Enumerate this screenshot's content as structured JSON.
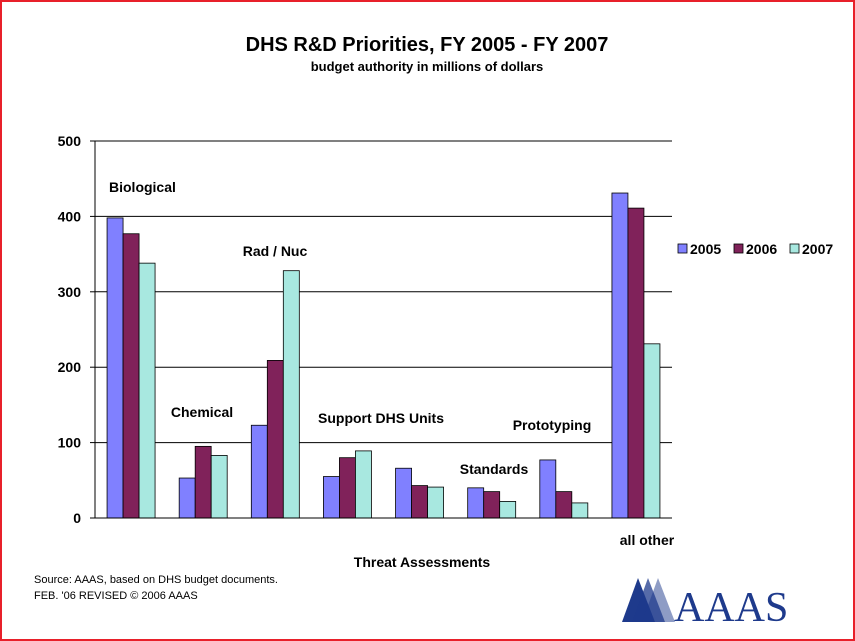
{
  "chart_data": {
    "type": "bar",
    "title": "DHS R&D Priorities, FY 2005 - FY 2007",
    "subtitle": "budget authority in millions of dollars",
    "categories": [
      "Biological",
      "Chemical",
      "Rad / Nuc",
      "Support DHS Units",
      "Threat Assessments",
      "Standards",
      "Prototyping",
      "all other"
    ],
    "series": [
      {
        "name": "2005",
        "color": "#8080ff",
        "values": [
          398,
          53,
          123,
          55,
          66,
          40,
          77,
          431
        ]
      },
      {
        "name": "2006",
        "color": "#80225a",
        "values": [
          377,
          95,
          209,
          80,
          43,
          35,
          35,
          411
        ]
      },
      {
        "name": "2007",
        "color": "#a8e8e0",
        "values": [
          338,
          83,
          328,
          89,
          41,
          22,
          20,
          231
        ]
      }
    ],
    "ylim": [
      0,
      500
    ],
    "yticks": [
      0,
      100,
      200,
      300,
      400,
      500
    ],
    "grid": true,
    "legend_position": "right"
  },
  "source_lines": [
    "Source: AAAS, based on DHS budget documents.",
    "FEB. '06  REVISED © 2006  AAAS"
  ],
  "logo": {
    "text": "AAAS",
    "color": "#1e3a8c"
  },
  "frame_color": "#e8202a"
}
